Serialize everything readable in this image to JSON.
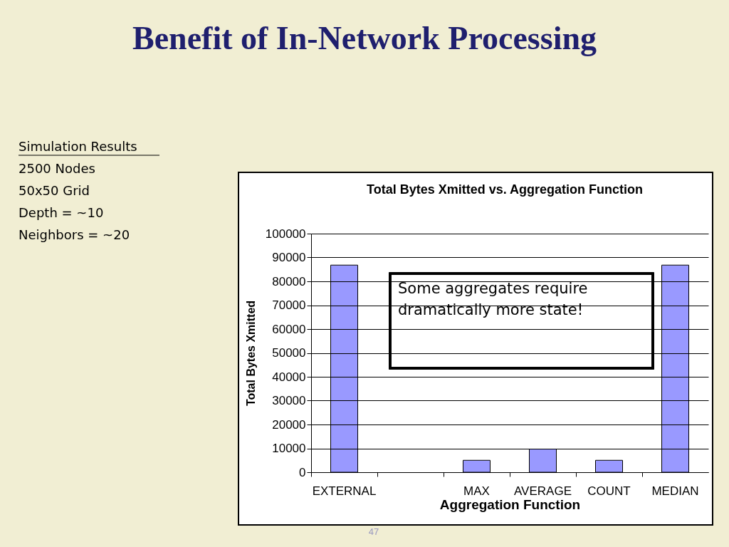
{
  "chart_data": {
    "type": "bar",
    "title": "Benefit of In-Network Processing",
    "subtitle": "Total Bytes Xmitted vs. Aggregation Function",
    "xlabel": "Aggregation Function",
    "ylabel": "Total Bytes Xmitted",
    "categories": [
      "EXTERNAL",
      null,
      "MAX",
      "AVERAGE",
      "COUNT",
      "MEDIAN"
    ],
    "values": [
      86800,
      null,
      5000,
      9700,
      5000,
      86800
    ],
    "color": "#9999ff",
    "ylim": [
      0,
      100000
    ],
    "yticks": [
      0,
      10000,
      20000,
      30000,
      40000,
      50000,
      60000,
      70000,
      80000,
      90000,
      100000
    ],
    "grid": "y",
    "annotations": [
      "Simulation Results",
      "2500 Nodes",
      "50x50 Grid",
      "Depth = ~10",
      "Neighbors = ~20",
      "Some aggregates require dramatically more state!",
      "47"
    ]
  }
}
